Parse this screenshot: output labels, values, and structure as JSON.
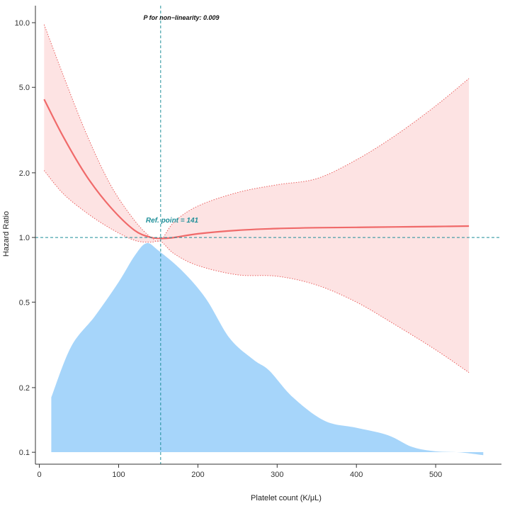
{
  "chart_data": {
    "type": "line",
    "title": "",
    "xlabel": "Platelet count (K/μL)",
    "ylabel": "Hazard Ratio",
    "x_ticks": [
      0,
      100,
      200,
      300,
      400,
      500
    ],
    "y_ticks": [
      0.1,
      0.2,
      0.5,
      1.0,
      2.0,
      5.0,
      10.0
    ],
    "y_tick_labels": [
      "0.1",
      "0.2",
      "0.5",
      "1.0",
      "2.0",
      "5.0",
      "10.0"
    ],
    "xlim": [
      -5,
      583
    ],
    "ylim": [
      0.088,
      12
    ],
    "y_scale": "log",
    "reference_x": 153,
    "reference_y": 1.0,
    "annotations": {
      "p_nonlinearity": "P for non−linearity: 0.009",
      "ref_point": "Ref. point = 141"
    },
    "series": [
      {
        "name": "Hazard Ratio",
        "x": [
          6,
          30,
          60,
          90,
          120,
          141,
          153,
          170,
          200,
          250,
          300,
          350,
          400,
          450,
          500,
          542
        ],
        "values": [
          4.4,
          2.95,
          1.92,
          1.38,
          1.08,
          1.0,
          0.99,
          1.0,
          1.04,
          1.08,
          1.1,
          1.11,
          1.115,
          1.12,
          1.125,
          1.13
        ]
      },
      {
        "name": "Upper 95% CI",
        "x": [
          6,
          30,
          60,
          90,
          120,
          141,
          153,
          170,
          200,
          250,
          300,
          350,
          400,
          450,
          500,
          542
        ],
        "values": [
          9.8,
          5.7,
          3.0,
          1.75,
          1.2,
          1.0,
          0.97,
          1.18,
          1.4,
          1.62,
          1.76,
          1.88,
          2.3,
          3.0,
          4.1,
          5.5
        ]
      },
      {
        "name": "Lower 95% CI",
        "x": [
          6,
          30,
          60,
          90,
          120,
          141,
          153,
          170,
          200,
          250,
          300,
          350,
          400,
          450,
          500,
          542
        ],
        "values": [
          2.05,
          1.6,
          1.3,
          1.1,
          0.97,
          0.95,
          0.96,
          0.84,
          0.74,
          0.67,
          0.66,
          0.6,
          0.5,
          0.39,
          0.3,
          0.235
        ]
      }
    ],
    "density": {
      "name": "Platelet count distribution",
      "x": [
        15,
        40,
        70,
        100,
        120,
        135,
        150,
        180,
        210,
        240,
        270,
        290,
        320,
        360,
        400,
        440,
        470,
        500,
        530,
        560
      ],
      "values": [
        0.18,
        0.31,
        0.43,
        0.62,
        0.82,
        0.94,
        0.87,
        0.7,
        0.52,
        0.34,
        0.27,
        0.24,
        0.18,
        0.14,
        0.13,
        0.12,
        0.106,
        0.101,
        0.1,
        0.097
      ]
    },
    "colors": {
      "line": "#f06a6a",
      "band": "#fddede",
      "band_border": "#e9605f",
      "density": "#a6d5fa",
      "reference": "#1f8f99"
    }
  }
}
